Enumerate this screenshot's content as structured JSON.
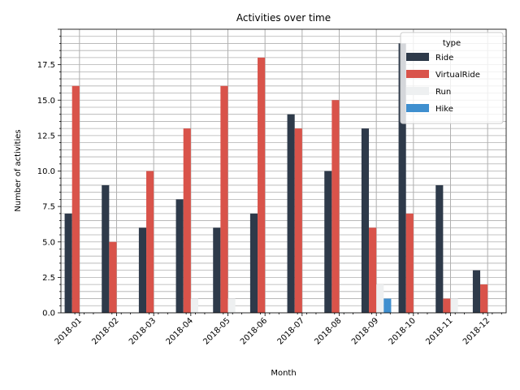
{
  "chart_data": {
    "type": "bar",
    "title": "Activities over time",
    "xlabel": "Month",
    "ylabel": "Number of activities",
    "categories": [
      "2018-01",
      "2018-02",
      "2018-03",
      "2018-04",
      "2018-05",
      "2018-06",
      "2018-07",
      "2018-08",
      "2018-09",
      "2018-10",
      "2018-11",
      "2018-12"
    ],
    "series": [
      {
        "name": "Ride",
        "color": "#2e3a4a",
        "values": [
          7,
          9,
          6,
          8,
          6,
          7,
          14,
          10,
          13,
          19,
          9,
          3
        ]
      },
      {
        "name": "VirtualRide",
        "color": "#d9534a",
        "values": [
          16,
          5,
          10,
          13,
          16,
          18,
          13,
          15,
          6,
          7,
          1,
          2
        ]
      },
      {
        "name": "Run",
        "color": "#eef0f1",
        "values": [
          0,
          0,
          0,
          1,
          1,
          0,
          0,
          0,
          2,
          0,
          1,
          0
        ]
      },
      {
        "name": "Hike",
        "color": "#3f8fcf",
        "values": [
          0,
          0,
          0,
          0,
          0,
          0,
          0,
          0,
          1,
          0,
          0,
          0
        ]
      }
    ],
    "ylim": [
      0,
      20
    ],
    "yticks": [
      "0.0",
      "2.5",
      "5.0",
      "7.5",
      "10.0",
      "12.5",
      "15.0",
      "17.5"
    ],
    "grid": true,
    "legend": {
      "title": "type",
      "position": "top-right"
    }
  }
}
